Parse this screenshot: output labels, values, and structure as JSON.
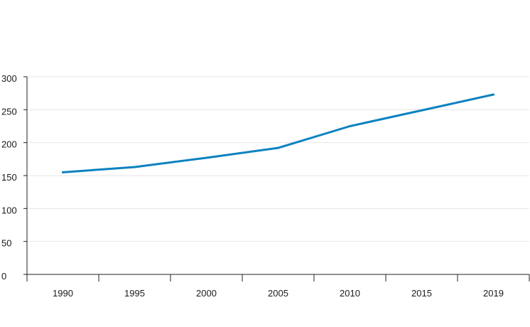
{
  "chart_data": {
    "type": "line",
    "title": "",
    "xlabel": "",
    "ylabel": "",
    "categories": [
      "1990",
      "1995",
      "2000",
      "2005",
      "2010",
      "2015",
      "2019"
    ],
    "series": [
      {
        "values": [
          155,
          163,
          177,
          192,
          225,
          249,
          273
        ]
      }
    ],
    "ylim": [
      0,
      300
    ],
    "yticks": [
      "0",
      "50",
      "100",
      "150",
      "200",
      "250",
      "300"
    ],
    "grid": true,
    "legend": "none",
    "colors": {
      "line": "#0a82c0",
      "grid": "#e6e6e6",
      "axis": "#222222"
    }
  }
}
